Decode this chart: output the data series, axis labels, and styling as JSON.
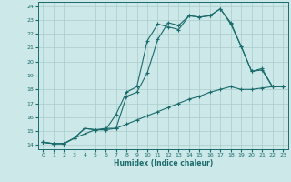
{
  "xlabel": "Humidex (Indice chaleur)",
  "bg_color": "#cce8e8",
  "grid_color": "#aacccc",
  "line_color": "#1a6b6b",
  "xlim": [
    -0.5,
    23.5
  ],
  "ylim": [
    13.7,
    24.3
  ],
  "xticks": [
    0,
    1,
    2,
    3,
    4,
    5,
    6,
    7,
    8,
    9,
    10,
    11,
    12,
    13,
    14,
    15,
    16,
    17,
    18,
    19,
    20,
    21,
    22,
    23
  ],
  "yticks": [
    14,
    15,
    16,
    17,
    18,
    19,
    20,
    21,
    22,
    23,
    24
  ],
  "line1_x": [
    0,
    1,
    2,
    3,
    4,
    5,
    6,
    7,
    8,
    9,
    10,
    11,
    12,
    13,
    14,
    15,
    16,
    17,
    18,
    19,
    20,
    21,
    22,
    23
  ],
  "line1_y": [
    14.2,
    14.1,
    14.1,
    14.5,
    15.2,
    15.1,
    15.1,
    16.2,
    17.8,
    18.2,
    21.5,
    22.7,
    22.5,
    22.3,
    23.3,
    23.2,
    23.3,
    23.8,
    22.7,
    21.1,
    19.3,
    19.4,
    18.2,
    18.2
  ],
  "line2_x": [
    0,
    1,
    2,
    3,
    4,
    5,
    6,
    7,
    8,
    9,
    10,
    11,
    12,
    13,
    14,
    15,
    16,
    17,
    18,
    19,
    20,
    21,
    22,
    23
  ],
  "line2_y": [
    14.2,
    14.1,
    14.1,
    14.5,
    15.2,
    15.1,
    15.1,
    15.2,
    17.5,
    17.8,
    19.2,
    21.6,
    22.8,
    22.6,
    23.3,
    23.2,
    23.3,
    23.8,
    22.8,
    21.1,
    19.3,
    19.5,
    18.2,
    18.2
  ],
  "line3_x": [
    0,
    1,
    2,
    3,
    4,
    5,
    6,
    7,
    8,
    9,
    10,
    11,
    12,
    13,
    14,
    15,
    16,
    17,
    18,
    19,
    20,
    21,
    22,
    23
  ],
  "line3_y": [
    14.2,
    14.1,
    14.1,
    14.5,
    14.8,
    15.1,
    15.2,
    15.2,
    15.5,
    15.8,
    16.1,
    16.4,
    16.7,
    17.0,
    17.3,
    17.5,
    17.8,
    18.0,
    18.2,
    18.0,
    18.0,
    18.1,
    18.2,
    18.2
  ]
}
